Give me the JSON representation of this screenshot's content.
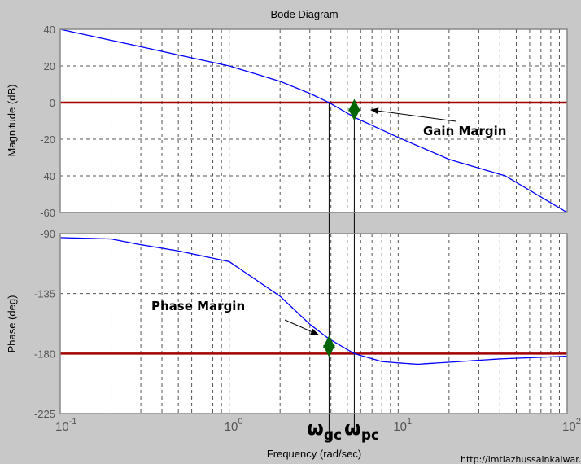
{
  "chart_data": [
    {
      "type": "line",
      "title": "Bode Diagram",
      "xlabel": "Frequency (rad/sec)",
      "ylabel": "Magnitude (dB)",
      "xscale": "log",
      "xlim": [
        0.1,
        100
      ],
      "ylim": [
        -60,
        40
      ],
      "yticks": [
        "40",
        "20",
        "0",
        "-20",
        "-40",
        "-60"
      ],
      "grid": true,
      "series": [
        {
          "x": [
            0.1,
            0.2,
            0.3,
            0.5,
            1,
            2,
            3,
            3.9,
            5.5,
            10,
            20,
            43,
            100
          ],
          "values": [
            40,
            34,
            30.5,
            26,
            20,
            11.6,
            5,
            0,
            -8,
            -19,
            -31,
            -40,
            -60
          ]
        }
      ],
      "reference_line": {
        "value": 0,
        "color": "#a00000"
      }
    },
    {
      "type": "line",
      "xlabel": "Frequency (rad/sec)",
      "ylabel": "Phase (deg)",
      "xscale": "log",
      "xlim": [
        0.1,
        100
      ],
      "ylim": [
        -225,
        -90
      ],
      "yticks": [
        "-90",
        "-135",
        "-180",
        "-225"
      ],
      "xticks": [
        {
          "base": "10",
          "exp": "-1"
        },
        {
          "base": "10",
          "exp": "0"
        },
        {
          "base": "10",
          "exp": "1"
        },
        {
          "base": "10",
          "exp": "2"
        }
      ],
      "grid": true,
      "series": [
        {
          "x": [
            0.1,
            0.2,
            0.29,
            0.5,
            1,
            2,
            3,
            3.9,
            5.5,
            8,
            10,
            13,
            20,
            40,
            100
          ],
          "values": [
            -93,
            -94,
            -98,
            -103,
            -111,
            -137,
            -158,
            -169,
            -180,
            -186,
            -187,
            -188,
            -186.5,
            -184,
            -182
          ]
        }
      ],
      "reference_line": {
        "value": -180,
        "color": "#a00000"
      }
    }
  ],
  "annotations": {
    "gain_margin": "Gain Margin",
    "phase_margin": "Phase Margin",
    "omega": "ω",
    "gc_sub": "gc",
    "pc_sub": "pc",
    "omega_gc": 3.9,
    "omega_pc": 5.5,
    "gain_margin_db": 8,
    "phase_margin_deg": 11
  },
  "watermark": "http://imtiazhussainkalwar.w",
  "colors": {
    "curve": "#0000ff",
    "reference": "#a00000",
    "margin_arrow": "#006400",
    "background": "#c8c8c8"
  }
}
